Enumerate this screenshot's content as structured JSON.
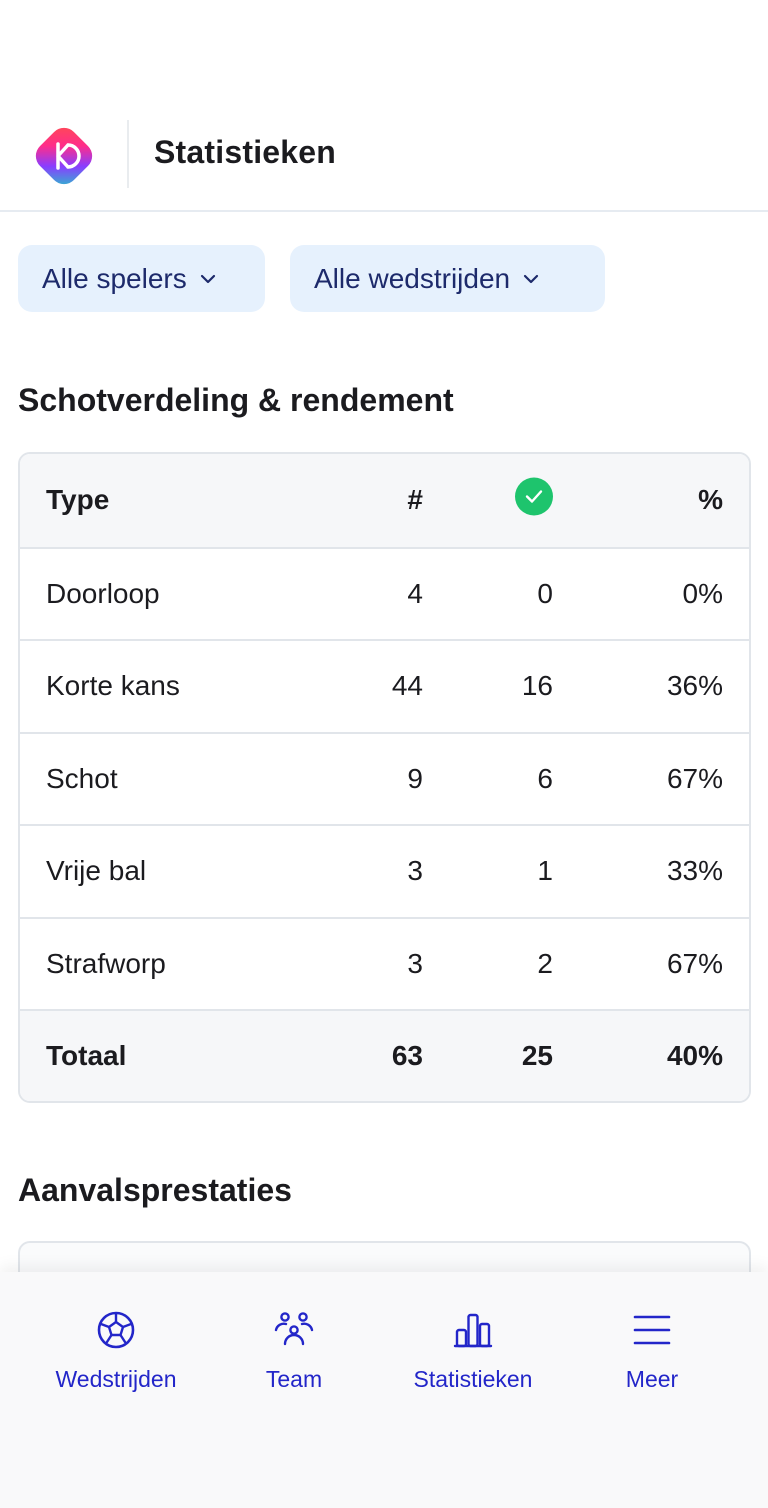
{
  "header": {
    "title": "Statistieken",
    "logo_icon": "app-logo-icon"
  },
  "filters": {
    "players_label": "Alle spelers",
    "matches_label": "Alle wedstrijden"
  },
  "sections": {
    "shots_title": "Schotverdeling & rendement",
    "attack_title": "Aanvalsprestaties"
  },
  "table": {
    "columns": {
      "type": "Type",
      "count": "#",
      "scored_icon": "check-circle-icon",
      "pct": "%"
    },
    "rows": [
      {
        "type": "Doorloop",
        "count": "4",
        "scored": "0",
        "pct": "0%"
      },
      {
        "type": "Korte kans",
        "count": "44",
        "scored": "16",
        "pct": "36%"
      },
      {
        "type": "Schot",
        "count": "9",
        "scored": "6",
        "pct": "67%"
      },
      {
        "type": "Vrije bal",
        "count": "3",
        "scored": "1",
        "pct": "33%"
      },
      {
        "type": "Strafworp",
        "count": "3",
        "scored": "2",
        "pct": "67%"
      }
    ],
    "total": {
      "type": "Totaal",
      "count": "63",
      "scored": "25",
      "pct": "40%"
    }
  },
  "nav": {
    "items": [
      {
        "label": "Wedstrijden",
        "icon": "soccer-ball-icon"
      },
      {
        "label": "Team",
        "icon": "team-icon"
      },
      {
        "label": "Statistieken",
        "icon": "bar-chart-icon"
      },
      {
        "label": "Meer",
        "icon": "menu-icon"
      }
    ]
  },
  "colors": {
    "accent": "#2326c9",
    "filter_bg": "#e6f1fd",
    "success": "#1ec46d"
  }
}
